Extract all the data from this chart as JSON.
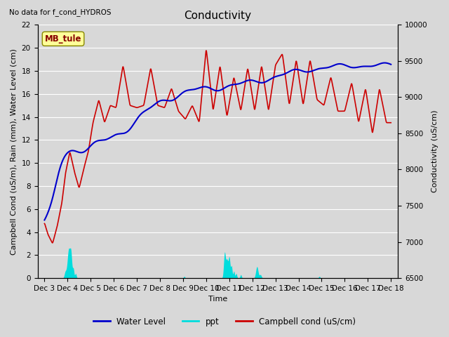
{
  "title": "Conductivity",
  "subtitle": "No data for f_cond_HYDROS",
  "xlabel": "Time",
  "ylabel_left": "Campbell Cond (uS/m), Rain (mm), Water Level (cm)",
  "ylabel_right": "Conductivity (uS/cm)",
  "ylim_left": [
    0,
    22
  ],
  "ylim_right": [
    6500,
    10000
  ],
  "yticks_left": [
    0,
    2,
    4,
    6,
    8,
    10,
    12,
    14,
    16,
    18,
    20,
    22
  ],
  "yticks_right": [
    6500,
    7000,
    7500,
    8000,
    8500,
    9000,
    9500,
    10000
  ],
  "xtick_labels": [
    "Dec 3",
    "Dec 4",
    "Dec 5",
    "Dec 6",
    "Dec 7",
    "Dec 8",
    "Dec 9",
    "Dec 10",
    "Dec 11",
    "Dec 12",
    "Dec 13",
    "Dec 14",
    "Dec 15",
    "Dec 16",
    "Dec 17",
    "Dec 18"
  ],
  "bg_color": "#d8d8d8",
  "plot_bg_color": "#d8d8d8",
  "grid_color": "#ffffff",
  "water_level_color": "#0000cc",
  "ppt_color": "#00dddd",
  "campbell_color": "#cc0000",
  "legend_box_color": "#ffff99",
  "legend_box_label": "MB_tule",
  "title_fontsize": 11,
  "label_fontsize": 8,
  "tick_fontsize": 7.5
}
